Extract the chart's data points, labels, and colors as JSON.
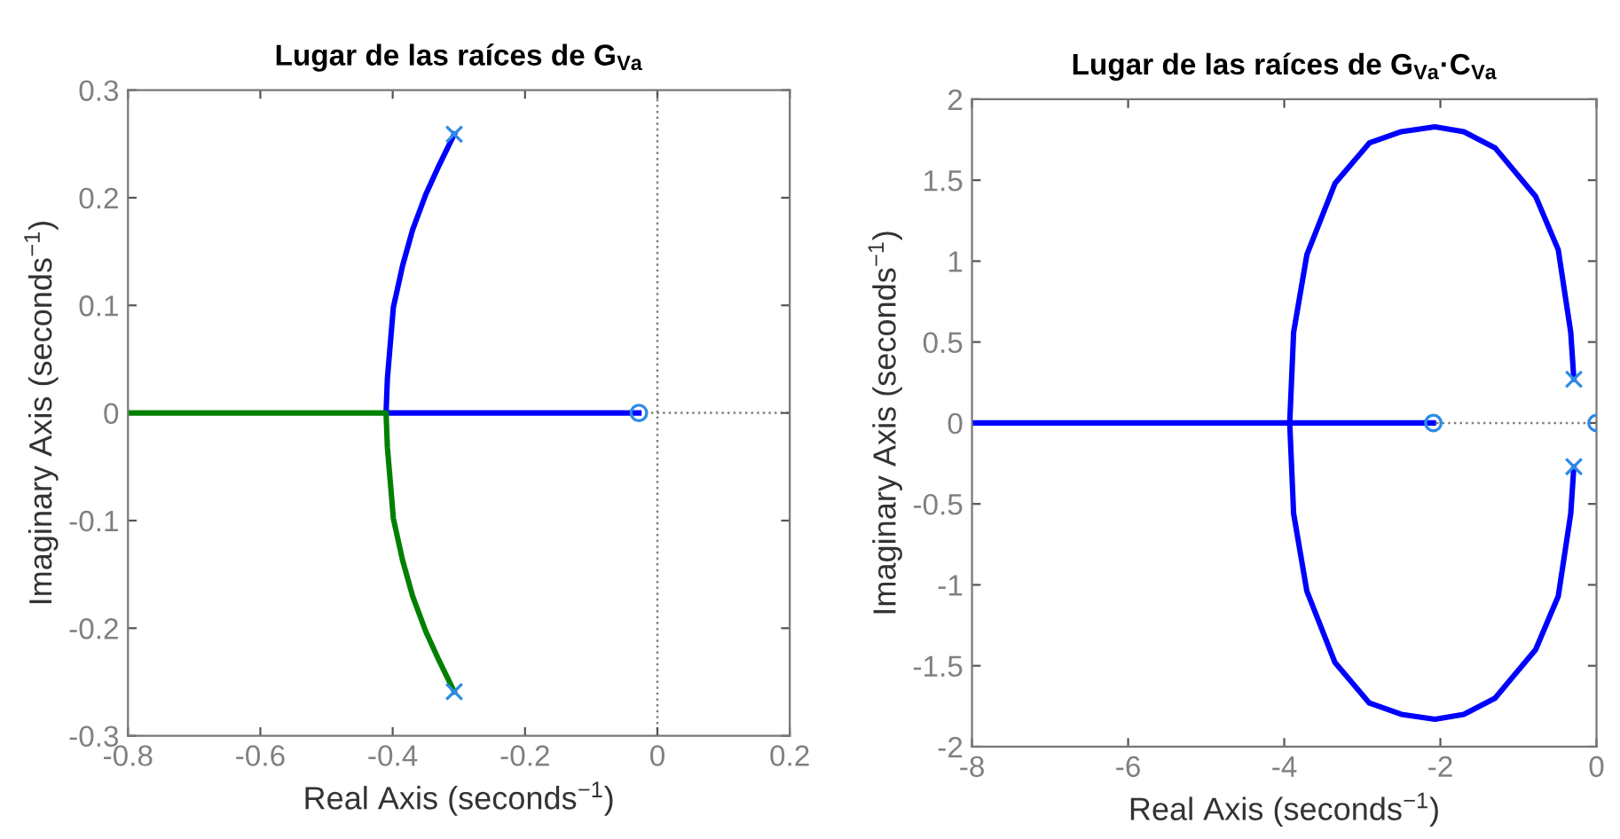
{
  "chart_data": [
    {
      "type": "line",
      "title": "Lugar de las raíces de G$_{Va}$",
      "xlabel": "Real Axis (seconds$^{−1}$)",
      "ylabel": "Imaginary Axis (seconds$^{−1}$)",
      "xlim": [
        -0.8,
        0.2
      ],
      "ylim": [
        -0.3,
        0.3
      ],
      "xticks": [
        -0.8,
        -0.6,
        -0.4,
        -0.2,
        0,
        0.2
      ],
      "yticks": [
        -0.3,
        -0.2,
        -0.1,
        0,
        0.1,
        0.2,
        0.3
      ],
      "grid": false,
      "ref_lines": [
        {
          "axis": "x",
          "value": 0,
          "color": "#808080",
          "line_style": "dotted"
        },
        {
          "axis": "y",
          "value": 0,
          "color": "#808080",
          "line_style": "dotted"
        }
      ],
      "series": [
        {
          "color": "#0000ff",
          "x": [
            -0.307,
            -0.33,
            -0.35,
            -0.37,
            -0.385,
            -0.399,
            -0.408,
            -0.41,
            -0.028
          ],
          "values": [
            0.259,
            0.23,
            0.203,
            0.17,
            0.137,
            0.098,
            0.032,
            0,
            0
          ]
        },
        {
          "color": "#008000",
          "x": [
            -0.307,
            -0.33,
            -0.35,
            -0.37,
            -0.385,
            -0.399,
            -0.408,
            -0.41,
            -0.8
          ],
          "values": [
            -0.259,
            -0.23,
            -0.203,
            -0.17,
            -0.137,
            -0.098,
            -0.032,
            0,
            0
          ]
        },
        {
          "type": "scatter",
          "marker": "cross",
          "color": "#2e8be6",
          "x": [
            -0.307,
            -0.307
          ],
          "values": [
            0.259,
            -0.259
          ]
        },
        {
          "type": "scatter",
          "marker": "circle",
          "color": "#2e8be6",
          "x": [
            -0.028
          ],
          "values": [
            0
          ]
        }
      ]
    },
    {
      "type": "line",
      "title": "Lugar de las raíces de G$_{Va}$·C$_{Va}$",
      "xlabel": "Real Axis (seconds$^{−1}$)",
      "ylabel": "Imaginary Axis (seconds$^{−1}$)",
      "xlim": [
        -8,
        0
      ],
      "ylim": [
        -2,
        2
      ],
      "xticks": [
        -8,
        -6,
        -4,
        -2,
        0
      ],
      "yticks": [
        -2,
        -1.5,
        -1,
        -0.5,
        0,
        0.5,
        1,
        1.5,
        2
      ],
      "grid": false,
      "ref_lines": [
        {
          "axis": "y",
          "value": 0,
          "color": "#808080",
          "line_style": "dotted"
        }
      ],
      "series": [
        {
          "color": "#0000ff",
          "x": [
            -0.29,
            -0.33,
            -0.49,
            -0.78,
            -1.3,
            -1.7,
            -2.07,
            -2.5,
            -2.91,
            -3.35,
            -3.71,
            -3.88,
            -3.93,
            -2.09
          ],
          "values": [
            0.27,
            0.56,
            1.07,
            1.4,
            1.7,
            1.8,
            1.83,
            1.8,
            1.73,
            1.48,
            1.04,
            0.56,
            0,
            0
          ]
        },
        {
          "color": "#0000ff",
          "x": [
            -0.29,
            -0.33,
            -0.49,
            -0.78,
            -1.3,
            -1.7,
            -2.07,
            -2.5,
            -2.91,
            -3.35,
            -3.71,
            -3.88,
            -3.93,
            -8
          ],
          "values": [
            -0.27,
            -0.56,
            -1.07,
            -1.4,
            -1.7,
            -1.8,
            -1.83,
            -1.8,
            -1.73,
            -1.48,
            -1.04,
            -0.56,
            0,
            0
          ]
        },
        {
          "type": "scatter",
          "marker": "cross",
          "color": "#2e8be6",
          "x": [
            -0.29,
            -0.29
          ],
          "values": [
            0.27,
            -0.27
          ]
        },
        {
          "type": "scatter",
          "marker": "circle",
          "color": "#2e8be6",
          "x": [
            -2.09,
            0
          ],
          "values": [
            0,
            0
          ]
        }
      ]
    }
  ]
}
